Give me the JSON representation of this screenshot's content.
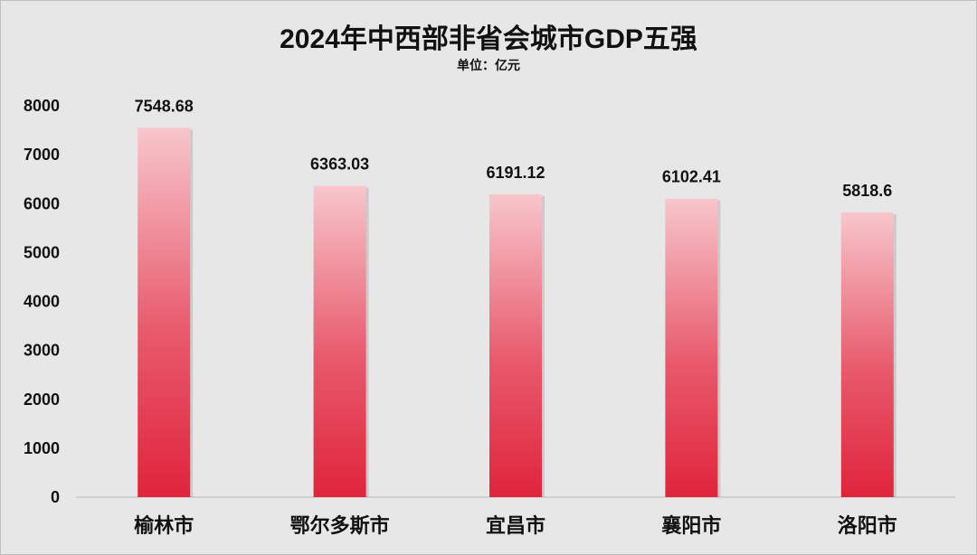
{
  "chart_data": {
    "type": "bar",
    "title": "2024年中西部非省会城市GDP五强",
    "subtitle": "单位：亿元",
    "categories": [
      "榆林市",
      "鄂尔多斯市",
      "宜昌市",
      "襄阳市",
      "洛阳市"
    ],
    "values": [
      7548.68,
      6363.03,
      6191.12,
      6102.41,
      5818.6
    ],
    "value_labels": [
      "7548.68",
      "6363.03",
      "6191.12",
      "6102.41",
      "5818.6"
    ],
    "ylim": [
      0,
      8000
    ],
    "yticks": [
      0,
      1000,
      2000,
      3000,
      4000,
      5000,
      6000,
      7000,
      8000
    ],
    "grid": false,
    "bar_color_top": "#f7c6cc",
    "bar_color_bottom": "#e0243c"
  }
}
